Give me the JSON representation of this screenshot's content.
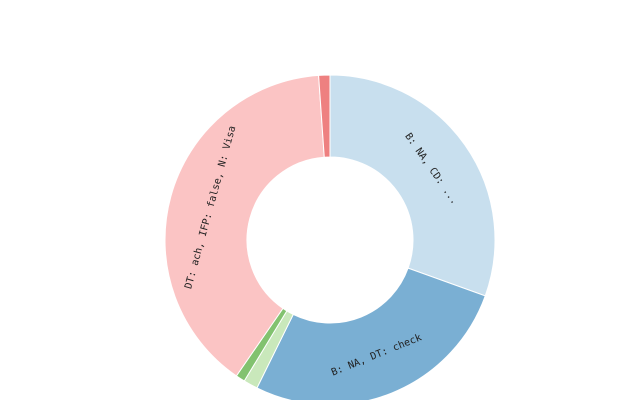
{
  "chart_data": {
    "type": "donut",
    "categories": [
      "B: NA, CD: ...",
      "B: NA, DT: check",
      null,
      null,
      "DT: ach, IFP: false, N: Visa",
      null
    ],
    "values": [
      30.5,
      26.8,
      1.4,
      0.9,
      39.3,
      1.1
    ],
    "colors": [
      "#c8dfee",
      "#7aafd3",
      "#c9e8bb",
      "#82c26f",
      "#fbc4c4",
      "#ee8080"
    ]
  }
}
